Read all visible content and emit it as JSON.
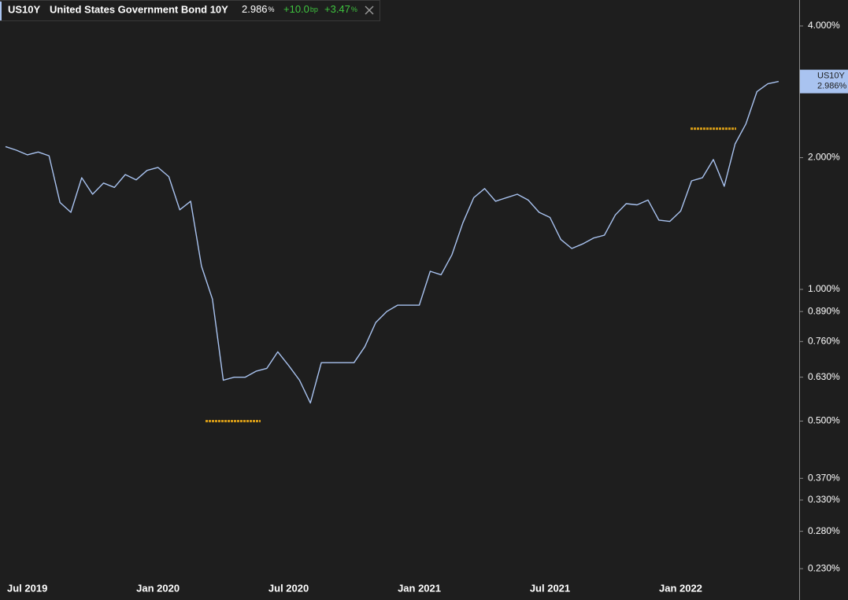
{
  "header": {
    "name": "United States Government Bond 10Y",
    "last": "2.986",
    "last_unit": "%",
    "change": "+10.0",
    "change_unit": "bp",
    "change_pct": "+3.47",
    "change_pct_unit": "%"
  },
  "chart_data": {
    "type": "line",
    "log_scale": true,
    "categories": [
      null,
      null,
      "Jul 2019",
      null,
      null,
      null,
      null,
      null,
      null,
      null,
      null,
      null,
      null,
      null,
      "Jan 2020",
      null,
      null,
      null,
      null,
      null,
      null,
      null,
      null,
      null,
      null,
      null,
      "Jul 2020",
      null,
      null,
      null,
      null,
      null,
      null,
      null,
      null,
      null,
      null,
      null,
      "Jan 2021",
      null,
      null,
      null,
      null,
      null,
      null,
      null,
      null,
      null,
      null,
      null,
      "Jul 2021",
      null,
      null,
      null,
      null,
      null,
      null,
      null,
      null,
      null,
      null,
      null,
      "Jan 2022",
      null,
      null,
      null,
      null,
      null,
      null,
      null,
      null,
      null
    ],
    "series": [
      {
        "name": "US10Y",
        "color": "#a9c3f0",
        "values": [
          2.12,
          2.08,
          2.03,
          2.06,
          2.02,
          1.58,
          1.5,
          1.8,
          1.65,
          1.75,
          1.71,
          1.83,
          1.78,
          1.87,
          1.9,
          1.81,
          1.52,
          1.59,
          1.13,
          0.95,
          0.62,
          0.63,
          0.63,
          0.65,
          0.66,
          0.72,
          0.67,
          0.62,
          0.55,
          0.68,
          0.68,
          0.68,
          0.68,
          0.74,
          0.84,
          0.89,
          0.92,
          0.92,
          0.92,
          1.1,
          1.08,
          1.2,
          1.42,
          1.62,
          1.7,
          1.59,
          1.62,
          1.65,
          1.6,
          1.5,
          1.46,
          1.3,
          1.24,
          1.27,
          1.31,
          1.33,
          1.48,
          1.57,
          1.56,
          1.6,
          1.44,
          1.43,
          1.51,
          1.77,
          1.8,
          1.98,
          1.72,
          2.15,
          2.39,
          2.83,
          2.95,
          2.986
        ]
      }
    ],
    "ylim": [
      0.219,
      4.585
    ],
    "yticks": [
      {
        "value": 4,
        "label": "4.000%"
      },
      {
        "value": 2,
        "label": "2.000%"
      },
      {
        "value": 1,
        "label": "1.000%"
      },
      {
        "value": 0.89,
        "label": "0.890%"
      },
      {
        "value": 0.76,
        "label": "0.760%"
      },
      {
        "value": 0.63,
        "label": "0.630%"
      },
      {
        "value": 0.5,
        "label": "0.500%"
      },
      {
        "value": 0.37,
        "label": "0.370%"
      },
      {
        "value": 0.33,
        "label": "0.330%"
      },
      {
        "value": 0.28,
        "label": "0.280%"
      },
      {
        "value": 0.23,
        "label": "0.230%"
      }
    ],
    "last_label": {
      "value": 2.986,
      "label": "2.986%"
    },
    "range_markers": {
      "color": "#d49a17",
      "values": [
        0.5,
        2.33
      ]
    }
  }
}
